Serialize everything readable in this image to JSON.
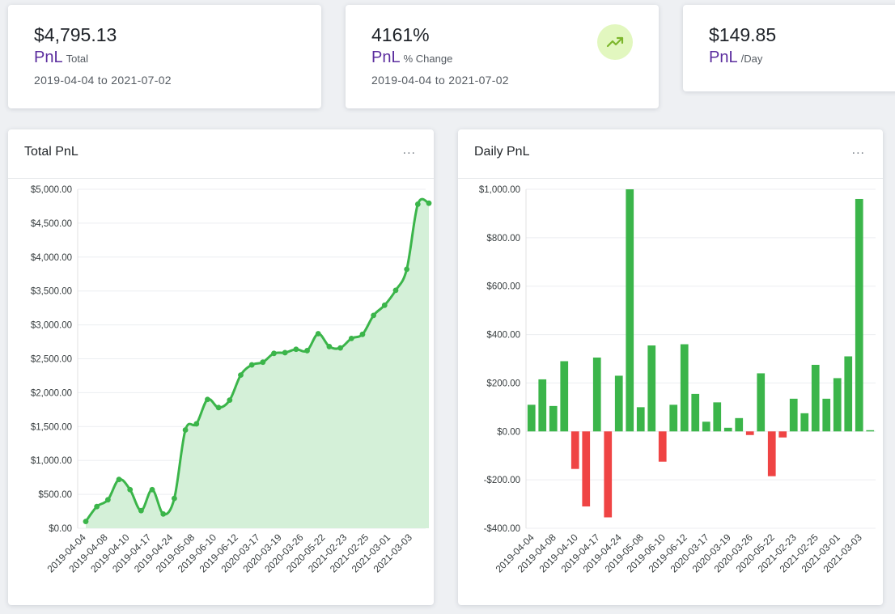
{
  "stats": [
    {
      "value": "$4,795.13",
      "label": "PnL",
      "sub": "Total",
      "range": "2019-04-04 to 2021-07-02"
    },
    {
      "value": "4161%",
      "label": "PnL",
      "sub": "% Change",
      "range": "2019-04-04 to 2021-07-02",
      "icon": "trending-up-icon"
    },
    {
      "value": "$149.85",
      "label": "PnL",
      "sub": "/Day"
    }
  ],
  "colors": {
    "accent": "#5b2d9e",
    "green": "#3bb54a",
    "red": "#ef4444",
    "area": "#d4f0d8",
    "badge": "#e2f7bf"
  },
  "total_chart": {
    "title": "Total PnL",
    "more": "..."
  },
  "daily_chart": {
    "title": "Daily PnL",
    "more": "..."
  },
  "chart_data": [
    {
      "type": "area",
      "title": "Total PnL",
      "ylim": [
        0,
        5000
      ],
      "ytick_values": [
        0,
        500,
        1000,
        1500,
        2000,
        2500,
        3000,
        3500,
        4000,
        4500,
        5000
      ],
      "ytick_labels": [
        "$0.00",
        "$500.00",
        "$1,000.00",
        "$1,500.00",
        "$2,000.00",
        "$2,500.00",
        "$3,000.00",
        "$3,500.00",
        "$4,000.00",
        "$4,500.00",
        "$5,000.00"
      ],
      "xtick_labels": [
        "2019-04-04",
        "2019-04-08",
        "2019-04-10",
        "2019-04-17",
        "2019-04-24",
        "2019-05-08",
        "2019-06-10",
        "2019-06-12",
        "2020-03-17",
        "2020-03-19",
        "2020-03-26",
        "2020-05-22",
        "2021-02-23",
        "2021-02-25",
        "2021-03-01",
        "2021-03-03"
      ],
      "values": [
        100,
        320,
        420,
        720,
        570,
        260,
        570,
        210,
        440,
        1450,
        1540,
        1900,
        1780,
        1890,
        2260,
        2410,
        2450,
        2580,
        2590,
        2640,
        2620,
        2870,
        2680,
        2660,
        2800,
        2860,
        3140,
        3290,
        3510,
        3820,
        4780,
        4795
      ]
    },
    {
      "type": "bar",
      "title": "Daily PnL",
      "ylim": [
        -400,
        1000
      ],
      "ytick_values": [
        -400,
        -200,
        0,
        200,
        400,
        600,
        800,
        1000
      ],
      "ytick_labels": [
        "-$400.00",
        "-$200.00",
        "$0.00",
        "$200.00",
        "$400.00",
        "$600.00",
        "$800.00",
        "$1,000.00"
      ],
      "xtick_labels": [
        "2019-04-04",
        "2019-04-08",
        "2019-04-10",
        "2019-04-17",
        "2019-04-24",
        "2019-05-08",
        "2019-06-10",
        "2019-06-12",
        "2020-03-17",
        "2020-03-19",
        "2020-03-26",
        "2020-05-22",
        "2021-02-23",
        "2021-02-25",
        "2021-03-01",
        "2021-03-03"
      ],
      "values": [
        110,
        215,
        105,
        290,
        -155,
        -310,
        305,
        -355,
        230,
        1000,
        100,
        355,
        -125,
        110,
        360,
        155,
        40,
        120,
        15,
        55,
        -15,
        240,
        -185,
        -25,
        135,
        75,
        275,
        135,
        220,
        310,
        960,
        5
      ]
    }
  ]
}
